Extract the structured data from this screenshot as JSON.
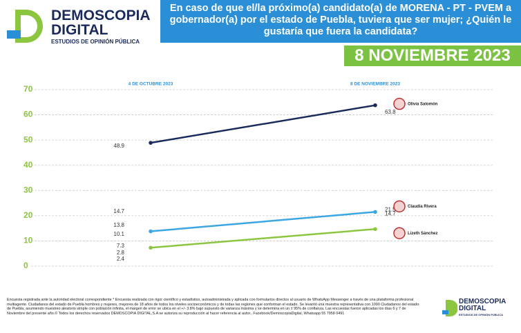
{
  "header": {
    "logo_name": "DEMOSCOPIA DIGITAL",
    "logo_tagline": "ESTUDIOS DE OPINIÓN PÚBLICA",
    "question": "En caso de que el/la próximo(a) candidato(a) de MORENA - PT - PVEM a gobernador(a) por el estado de Puebla, tuviera que ser mujer; ¿Quién le gustaría que fuera la candidata?",
    "date": "8 NOVIEMBRE 2023"
  },
  "chart_data": {
    "type": "line",
    "x": [
      "4 DE OCTUBRE 2023",
      "8 DE NOVIEMBRE 2023"
    ],
    "series": [
      {
        "name": "Olivia Salomón",
        "color": "#1b2a5c",
        "values": [
          48.9,
          63.8
        ]
      },
      {
        "name": "Claudia Rivera",
        "color": "#3aa6e4",
        "values": [
          13.8,
          21.5
        ]
      },
      {
        "name": "Lizeth Sánchez",
        "color": "#8cc63f",
        "values": [
          7.3,
          14.7
        ]
      }
    ],
    "annotations": [
      "14.7",
      "10.1",
      "2.8",
      "2.4"
    ],
    "ylim": [
      0,
      70
    ],
    "yticks": [
      0,
      10,
      20,
      30,
      40,
      50,
      60,
      70
    ],
    "grid": true
  },
  "footer": {
    "note": "Encuesta registrada ante la autoridad electoral correspondiente * Encuesta realizada con rigor científico y estadístico, autoadministrada y aplicada con formularios directos al usuario de WhatsApp Messenger a través de una plataforma profesional multiagente. Ciudadanos del estado de Puebla hombres y mujeres, mayores de 18 años de todos los niveles socioeconómicos y de todas las regiones que conforman el estado. Se levantó una muestra representativa con 1000 Ciudadanos del estado de Puebla, asumiendo muestreo aleatorio simple con población infinita, el margen de error se ubica en el +/- 3.8% bajo supuesto de varianza máxima y se determina en un ± 95% de confianza. Las encuestas fueron aplicadas los días 6 y 7 de Noviembre del presente año.© Todos los derechos reservados DEMOSCOPIA DIGITAL,S.A se autoriza su reproducción al hacer referencia al autor., Facebook/DemoscopiaDigital, Whatsapp 55 7958 0491"
  }
}
